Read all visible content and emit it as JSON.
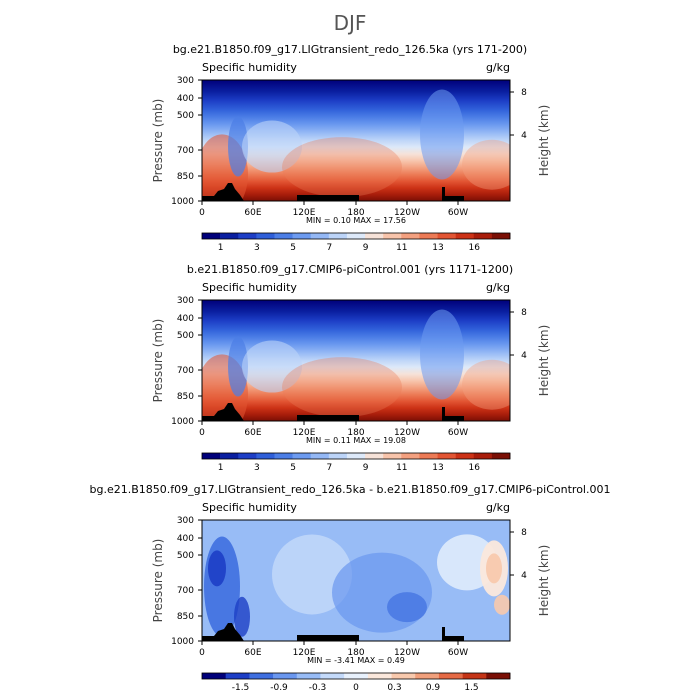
{
  "page": {
    "season_title": "DJF"
  },
  "palettes": {
    "humidity": [
      "#00007a",
      "#0a1fa0",
      "#1d3ec6",
      "#2f5fd9",
      "#4c7ee6",
      "#6d9bf0",
      "#94b8f5",
      "#bcd4f8",
      "#dde9f9",
      "#f6e2d8",
      "#f7c4ab",
      "#f3a07f",
      "#ec7a55",
      "#e25533",
      "#cc3216",
      "#a81d0b",
      "#7a0f05"
    ],
    "difference": [
      "#00007a",
      "#1d3ec6",
      "#3f6fe0",
      "#6a97ef",
      "#98bcf6",
      "#c4dafa",
      "#e8f1fc",
      "#fbe8dc",
      "#f8c9ad",
      "#f1a07c",
      "#e56a45",
      "#c43416",
      "#7a0f05"
    ]
  },
  "chart_data": [
    {
      "type": "heatmap",
      "title": "bg.e21.B1850.f09_g17.LIGtransient_redo_126.5ka (yrs 171-200)",
      "field_label": "Specific humidity",
      "units": "g/kg",
      "ylabel": "Pressure (mb)",
      "y2label": "Height (km)",
      "xticks": [
        "0",
        "60E",
        "120E",
        "180",
        "120W",
        "60W"
      ],
      "yticks": [
        "300",
        "400",
        "500",
        "700",
        "850",
        "1000"
      ],
      "y2ticks": [
        "8",
        "4"
      ],
      "minmax": "MIN =     0.10   MAX =    17.56",
      "colorbar_labels": [
        "1",
        "3",
        "5",
        "7",
        "9",
        "11",
        "13",
        "16"
      ],
      "palette": "humidity"
    },
    {
      "type": "heatmap",
      "title": "b.e21.B1850.f09_g17.CMIP6-piControl.001 (yrs 1171-1200)",
      "field_label": "Specific humidity",
      "units": "g/kg",
      "ylabel": "Pressure (mb)",
      "y2label": "Height (km)",
      "xticks": [
        "0",
        "60E",
        "120E",
        "180",
        "120W",
        "60W"
      ],
      "yticks": [
        "300",
        "400",
        "500",
        "700",
        "850",
        "1000"
      ],
      "y2ticks": [
        "8",
        "4"
      ],
      "minmax": "MIN =     0.11   MAX =    19.08",
      "colorbar_labels": [
        "1",
        "3",
        "5",
        "7",
        "9",
        "11",
        "13",
        "16"
      ],
      "palette": "humidity"
    },
    {
      "type": "heatmap",
      "title": "bg.e21.B1850.f09_g17.LIGtransient_redo_126.5ka - b.e21.B1850.f09_g17.CMIP6-piControl.001",
      "field_label": "Specific humidity",
      "units": "g/kg",
      "ylabel": "Pressure (mb)",
      "y2label": "Height (km)",
      "xticks": [
        "0",
        "60E",
        "120E",
        "180",
        "120W",
        "60W"
      ],
      "yticks": [
        "300",
        "400",
        "500",
        "700",
        "850",
        "1000"
      ],
      "y2ticks": [
        "8",
        "4"
      ],
      "minmax": "MIN =    -3.41   MAX =     0.49",
      "colorbar_labels": [
        "-1.5",
        "-0.9",
        "-0.3",
        "0",
        "0.3",
        "0.9",
        "1.5"
      ],
      "palette": "difference"
    }
  ]
}
